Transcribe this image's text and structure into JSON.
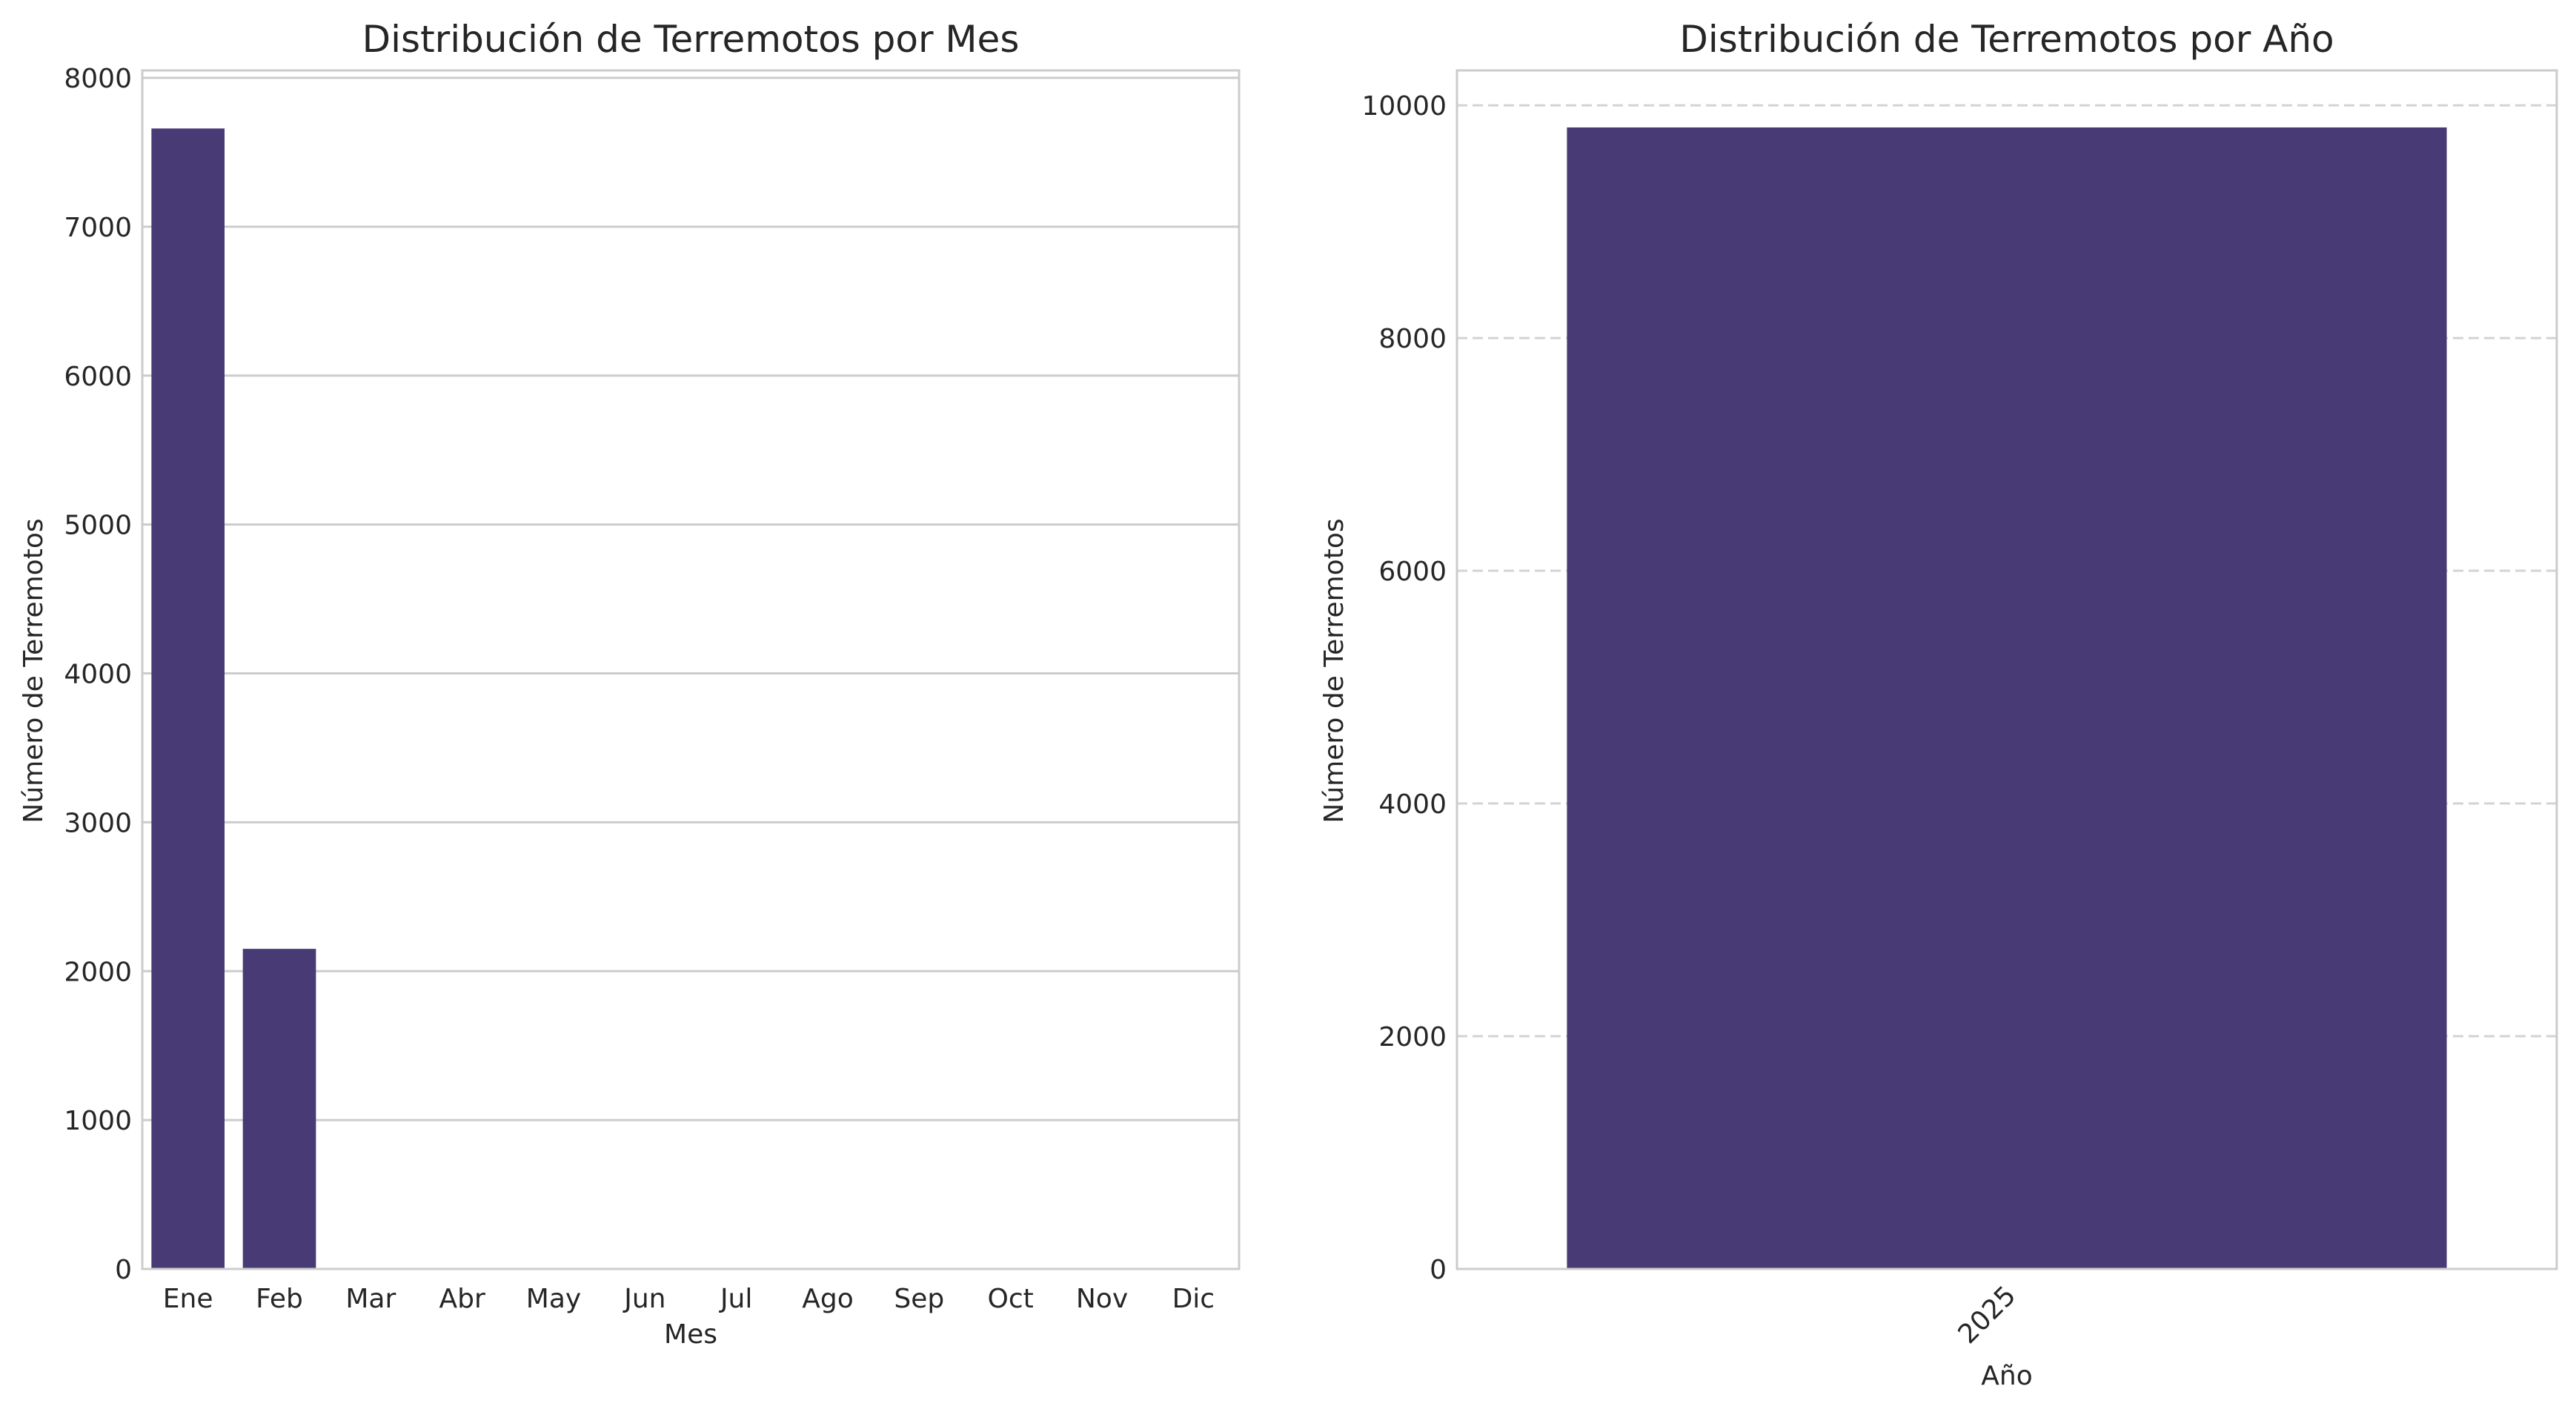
{
  "chart_data": [
    {
      "type": "bar",
      "title": "Distribución de Terremotos por Mes",
      "xlabel": "Mes",
      "ylabel": "Número de Terremotos",
      "categories": [
        "Ene",
        "Feb",
        "Mar",
        "Abr",
        "May",
        "Jun",
        "Jul",
        "Ago",
        "Sep",
        "Oct",
        "Nov",
        "Dic"
      ],
      "values": [
        7660,
        2150,
        0,
        0,
        0,
        0,
        0,
        0,
        0,
        0,
        0,
        0
      ],
      "ylim": [
        0,
        8050
      ],
      "yticks": [
        0,
        1000,
        2000,
        3000,
        4000,
        5000,
        6000,
        7000,
        8000
      ],
      "grid": "y-solid",
      "bar_color": "#483a75",
      "legend": "none"
    },
    {
      "type": "bar",
      "title": "Distribución de Terremotos por Año",
      "xlabel": "Año",
      "ylabel": "Número de Terremotos",
      "categories": [
        "2025"
      ],
      "values": [
        9810
      ],
      "ylim": [
        0,
        10300
      ],
      "yticks": [
        0,
        2000,
        4000,
        6000,
        8000,
        10000
      ],
      "grid": "y-dashed",
      "xtick_rotation": 45,
      "bar_color": "#483a75",
      "legend": "none"
    }
  ]
}
